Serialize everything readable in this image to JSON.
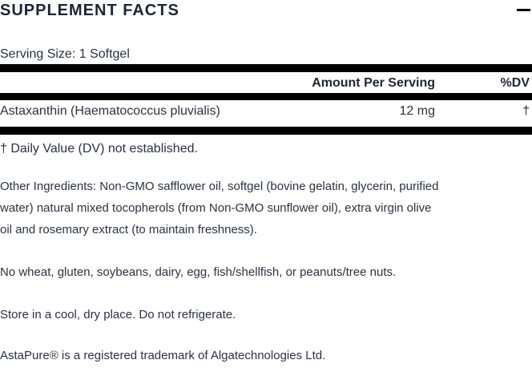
{
  "colors": {
    "text": "#2a3242",
    "heading_text": "#1d2534",
    "rule": "#000000",
    "background": "#ffffff"
  },
  "panel": {
    "title": "SUPPLEMENT FACTS",
    "collapse_icon": "minus-icon",
    "serving_size": "Serving Size: 1 Softgel",
    "table": {
      "headers": {
        "amount": "Amount Per Serving",
        "dv": "%DV"
      },
      "rows": [
        {
          "name": "Astaxanthin (Haematococcus pluvialis)",
          "amount": "12 mg",
          "dv": "†"
        }
      ],
      "footnote": "† Daily Value (DV) not established."
    },
    "other_ingredients": "Other Ingredients: Non-GMO safflower oil, softgel (bovine gelatin, glycerin, purified water) natural mixed tocopherols (from Non-GMO sunflower oil), extra virgin olive oil and rosemary extract (to maintain freshness).",
    "allergen_statement": "No wheat, gluten, soybeans, dairy, egg, fish/shellfish, or peanuts/tree nuts.",
    "storage": "Store in a cool, dry place. Do not refrigerate.",
    "trademark": "AstaPure® is a registered trademark of Algatechnologies Ltd."
  }
}
